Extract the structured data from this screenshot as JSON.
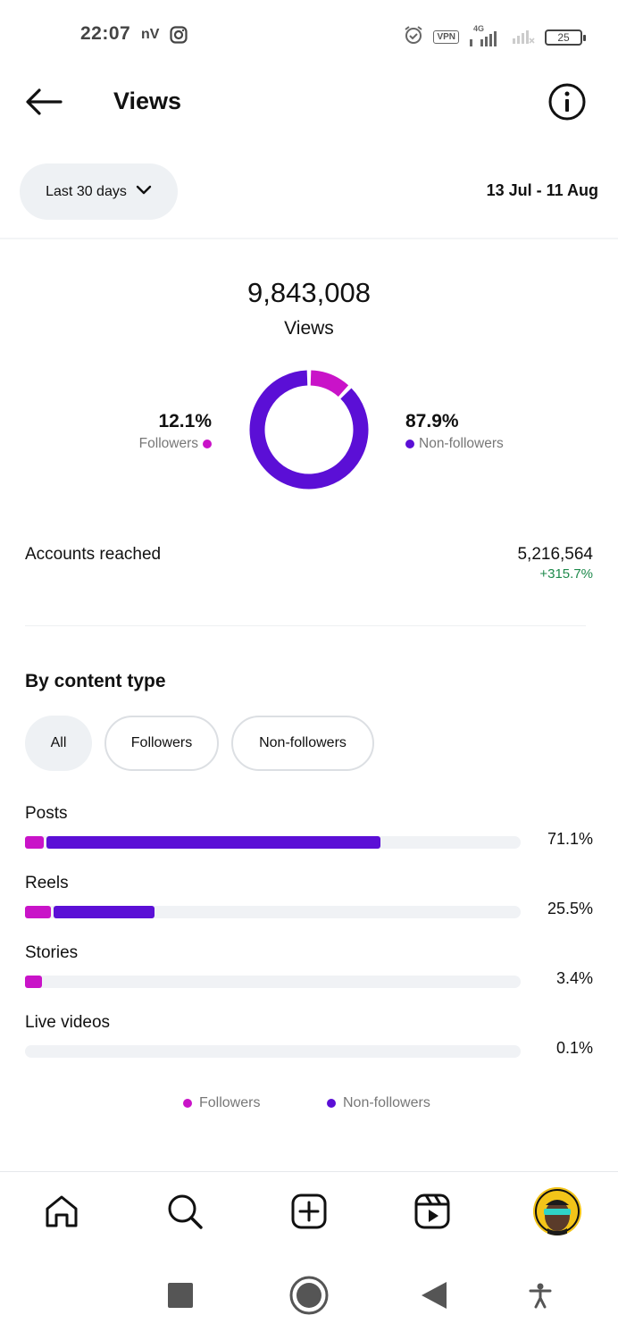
{
  "status_bar": {
    "time": "22:07",
    "carrier_mark": "nV",
    "vpn": "VPN",
    "network": "4G",
    "battery": "25"
  },
  "header": {
    "title": "Views"
  },
  "range": {
    "selector_label": "Last 30 days",
    "dates": "13 Jul - 11 Aug"
  },
  "summary": {
    "total_views": "9,843,008",
    "total_label": "Views",
    "followers_pct": "12.1%",
    "followers_label": "Followers",
    "nonfollowers_pct": "87.9%",
    "nonfollowers_label": "Non-followers"
  },
  "reach": {
    "label": "Accounts reached",
    "value": "5,216,564",
    "change": "+315.7%"
  },
  "content_type": {
    "title": "By content type",
    "filters": [
      "All",
      "Followers",
      "Non-followers"
    ],
    "selected_filter": "All",
    "rows": [
      {
        "label": "Posts",
        "pct": "71.1%"
      },
      {
        "label": "Reels",
        "pct": "25.5%"
      },
      {
        "label": "Stories",
        "pct": "3.4%"
      },
      {
        "label": "Live videos",
        "pct": "0.1%"
      }
    ],
    "legend": [
      "Followers",
      "Non-followers"
    ]
  },
  "chart_data": [
    {
      "type": "pie",
      "categories": [
        "Followers",
        "Non-followers"
      ],
      "values": [
        12.1,
        87.9
      ],
      "colors": [
        "#c913c8",
        "#5b0fd6"
      ]
    },
    {
      "type": "bar",
      "categories": [
        "Posts",
        "Reels",
        "Stories",
        "Live videos"
      ],
      "values": [
        71.1,
        25.5,
        3.4,
        0.1
      ],
      "series": [
        {
          "name": "Followers",
          "values": [
            3.8,
            5.2,
            3.4,
            0.0
          ]
        },
        {
          "name": "Non-followers",
          "values": [
            67.3,
            20.3,
            0.0,
            0.1
          ]
        }
      ],
      "colors": [
        "#c913c8",
        "#5b0fd6"
      ]
    }
  ],
  "colors": {
    "followers": "#c913c8",
    "nonfollowers": "#5b0fd6",
    "positive": "#1f8a4c"
  },
  "bottom_nav": [
    "home-icon",
    "search-icon",
    "create-icon",
    "reels-icon",
    "profile-avatar"
  ],
  "system_nav": [
    "recents-icon",
    "home-circle-icon",
    "back-triangle-icon",
    "accessibility-icon"
  ]
}
